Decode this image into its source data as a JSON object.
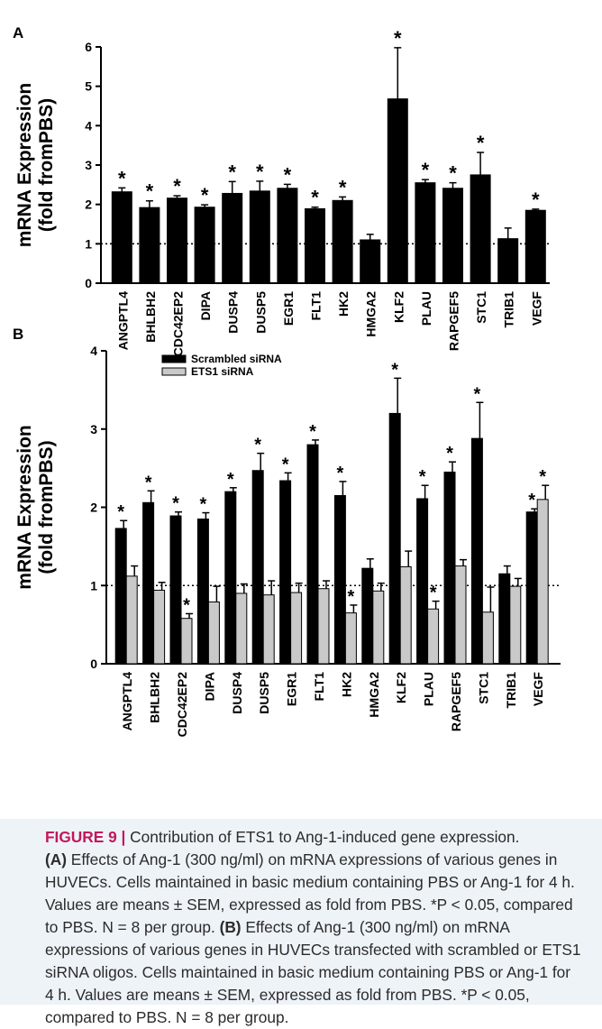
{
  "chart_data": [
    {
      "panel_label": "A",
      "type": "bar",
      "ylabel_line1": "mRNA Expression",
      "ylabel_line2": "(fold fromPBS)",
      "ylim": [
        0,
        6
      ],
      "yticks": [
        "0",
        "1",
        "2",
        "3",
        "4",
        "5",
        "6"
      ],
      "reference_line": 1,
      "categories": [
        "ANGPTL4",
        "BHLBH2",
        "CDC42EP2",
        "DIPA",
        "DUSP4",
        "DUSP5",
        "EGR1",
        "FLT1",
        "HK2",
        "HMGA2",
        "KLF2",
        "PLAU",
        "RAPGEF5",
        "STC1",
        "TRIB1",
        "VEGF"
      ],
      "series": [
        {
          "color": "#000000",
          "values": [
            2.32,
            1.92,
            2.16,
            1.93,
            2.28,
            2.34,
            2.41,
            1.89,
            2.1,
            1.1,
            4.68,
            2.55,
            2.41,
            2.75,
            1.13,
            1.85
          ],
          "errors": [
            0.1,
            0.17,
            0.06,
            0.06,
            0.3,
            0.25,
            0.1,
            0.04,
            0.09,
            0.14,
            1.3,
            0.08,
            0.14,
            0.57,
            0.27,
            0.03
          ],
          "significant": [
            true,
            true,
            true,
            true,
            true,
            true,
            true,
            true,
            true,
            false,
            true,
            true,
            true,
            true,
            false,
            true
          ]
        }
      ],
      "annotation": "*"
    },
    {
      "panel_label": "B",
      "type": "bar",
      "ylabel_line1": "mRNA Expression",
      "ylabel_line2": "(fold fromPBS)",
      "ylim": [
        0,
        4
      ],
      "yticks": [
        "0",
        "1",
        "2",
        "3",
        "4"
      ],
      "reference_line": 1,
      "legend_position": "top-left",
      "categories": [
        "ANGPTL4",
        "BHLBH2",
        "CDC42EP2",
        "DIPA",
        "DUSP4",
        "DUSP5",
        "EGR1",
        "FLT1",
        "HK2",
        "HMGA2",
        "KLF2",
        "PLAU",
        "RAPGEF5",
        "STC1",
        "TRIB1",
        "VEGF"
      ],
      "series": [
        {
          "name": "Scrambled siRNA",
          "color": "#000000",
          "values": [
            1.73,
            2.06,
            1.89,
            1.85,
            2.2,
            2.47,
            2.34,
            2.8,
            2.15,
            1.22,
            3.2,
            2.11,
            2.45,
            2.88,
            1.15,
            1.94
          ],
          "errors": [
            0.1,
            0.15,
            0.05,
            0.08,
            0.05,
            0.22,
            0.1,
            0.06,
            0.18,
            0.12,
            0.45,
            0.17,
            0.13,
            0.46,
            0.1,
            0.04
          ],
          "significant": [
            true,
            true,
            true,
            true,
            true,
            true,
            true,
            true,
            true,
            false,
            true,
            true,
            true,
            true,
            false,
            true
          ]
        },
        {
          "name": "ETS1 siRNA",
          "color": "#c9c9c9",
          "values": [
            1.12,
            0.94,
            0.58,
            0.79,
            0.9,
            0.88,
            0.91,
            0.96,
            0.65,
            0.93,
            1.24,
            0.7,
            1.25,
            0.66,
            0.99,
            2.1
          ],
          "errors": [
            0.13,
            0.1,
            0.06,
            0.2,
            0.12,
            0.18,
            0.12,
            0.1,
            0.1,
            0.1,
            0.2,
            0.1,
            0.08,
            0.32,
            0.1,
            0.18
          ],
          "significant": [
            false,
            false,
            true,
            false,
            false,
            false,
            false,
            false,
            true,
            false,
            false,
            true,
            false,
            false,
            false,
            true
          ]
        }
      ],
      "annotation": "*"
    }
  ],
  "caption": {
    "lead": "FIGURE 9 |",
    "title": " Contribution of ETS1 to Ang-1-induced gene expression.",
    "partA_label": "(A)",
    "partA_text1": " Effects of Ang-1 (300 ng/ml) on mRNA expressions of various genes in",
    "partA_text2": "HUVECs. Cells maintained in basic medium containing PBS or Ang-1 for 4 h.",
    "partA_text3": "Values are means ± SEM, expressed as fold from PBS. *P < 0.05, compared",
    "partA_text4": "to PBS. N = 8 per group. ",
    "partB_label": "(B)",
    "partB_text1": " Effects of Ang-1 (300 ng/ml) on mRNA",
    "partB_text2": "expressions of various genes in HUVECs transfected with scrambled or ETS1",
    "partB_text3": "siRNA oligos. Cells maintained in basic medium containing PBS or Ang-1 for",
    "partB_text4": "4 h. Values are means ± SEM, expressed as fold from PBS. *P < 0.05,",
    "partB_text5": "compared to PBS. N = 8 per group."
  }
}
